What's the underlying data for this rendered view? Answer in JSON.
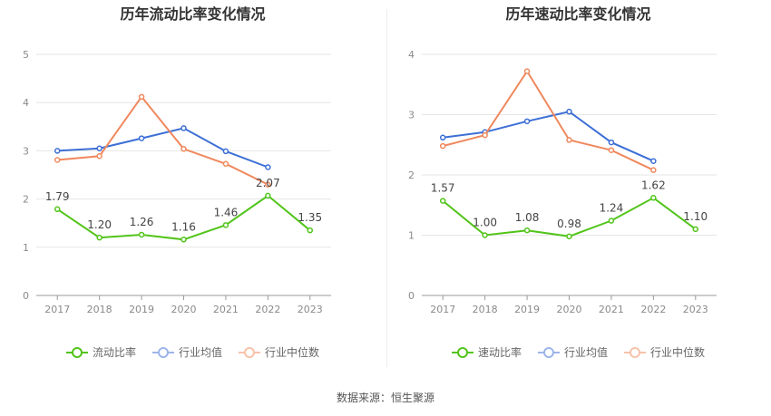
{
  "source_text": "数据来源：恒生聚源",
  "chart_data": [
    {
      "type": "line",
      "title": "历年流动比率变化情况",
      "categories": [
        "2017",
        "2018",
        "2019",
        "2020",
        "2021",
        "2022",
        "2023"
      ],
      "ylim": [
        0,
        5
      ],
      "yticks": [
        0,
        1,
        2,
        3,
        4,
        5
      ],
      "grid": true,
      "legend_position": "bottom",
      "series": [
        {
          "name": "流动比率",
          "color": "#52c41a",
          "values": [
            1.79,
            1.2,
            1.26,
            1.16,
            1.46,
            2.07,
            1.35
          ],
          "labels": [
            "1.79",
            "1.20",
            "1.26",
            "1.16",
            "1.46",
            "2.07",
            "1.35"
          ]
        },
        {
          "name": "行业均值",
          "color": "#3c6fd6",
          "values": [
            3.0,
            3.05,
            3.26,
            3.47,
            2.99,
            2.66,
            null
          ]
        },
        {
          "name": "行业中位数",
          "color": "#f0885d",
          "values": [
            2.81,
            2.89,
            4.12,
            3.04,
            2.73,
            2.3,
            null
          ]
        }
      ]
    },
    {
      "type": "line",
      "title": "历年速动比率变化情况",
      "categories": [
        "2017",
        "2018",
        "2019",
        "2020",
        "2021",
        "2022",
        "2023"
      ],
      "ylim": [
        0,
        4
      ],
      "yticks": [
        0,
        1,
        2,
        3,
        4
      ],
      "grid": true,
      "legend_position": "bottom",
      "series": [
        {
          "name": "速动比率",
          "color": "#52c41a",
          "values": [
            1.57,
            1.0,
            1.08,
            0.98,
            1.24,
            1.62,
            1.1
          ],
          "labels": [
            "1.57",
            "1.00",
            "1.08",
            "0.98",
            "1.24",
            "1.62",
            "1.10"
          ]
        },
        {
          "name": "行业均值",
          "color": "#3c6fd6",
          "values": [
            2.62,
            2.71,
            2.89,
            3.05,
            2.54,
            2.23,
            null
          ]
        },
        {
          "name": "行业中位数",
          "color": "#f0885d",
          "values": [
            2.48,
            2.66,
            3.72,
            2.58,
            2.41,
            2.08,
            null
          ]
        }
      ]
    }
  ]
}
